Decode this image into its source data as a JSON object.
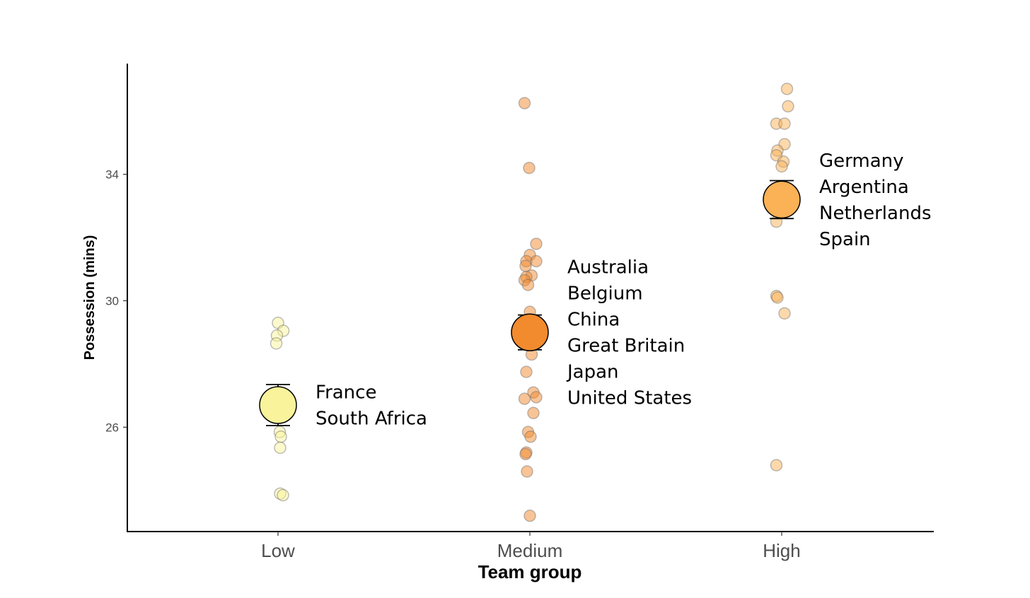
{
  "chart_data": {
    "type": "scatter",
    "xlabel": "Team group",
    "ylabel": "Possession (mins)",
    "categories": [
      "Low",
      "Medium",
      "High"
    ],
    "yticks": [
      26,
      30,
      34
    ],
    "ylim": [
      22.7,
      37.5
    ],
    "grid": false,
    "groups": [
      {
        "category": "Low",
        "color": "#f9f49b",
        "mean": 26.7,
        "error": [
          26.05,
          27.35
        ],
        "teams": [
          "France",
          "South Africa"
        ],
        "points": [
          {
            "j": 0.0,
            "y": 29.3
          },
          {
            "j": 0.15,
            "y": 29.05
          },
          {
            "j": -0.03,
            "y": 28.9
          },
          {
            "j": -0.05,
            "y": 28.65
          },
          {
            "j": 0.05,
            "y": 25.85
          },
          {
            "j": 0.08,
            "y": 25.7
          },
          {
            "j": 0.06,
            "y": 25.35
          },
          {
            "j": 0.06,
            "y": 23.9
          },
          {
            "j": 0.14,
            "y": 23.85
          }
        ]
      },
      {
        "category": "Medium",
        "color": "#f28a2e",
        "mean": 29.0,
        "error": [
          28.45,
          29.55
        ],
        "teams": [
          "Australia",
          "Belgium",
          "China",
          "Great Britain",
          "Japan",
          "United States"
        ],
        "points": [
          {
            "j": -0.15,
            "y": 36.25
          },
          {
            "j": -0.02,
            "y": 34.2
          },
          {
            "j": 0.18,
            "y": 31.8
          },
          {
            "j": 0.0,
            "y": 31.45
          },
          {
            "j": -0.1,
            "y": 31.25
          },
          {
            "j": 0.18,
            "y": 31.25
          },
          {
            "j": -0.12,
            "y": 31.1
          },
          {
            "j": 0.05,
            "y": 30.8
          },
          {
            "j": -0.1,
            "y": 30.75
          },
          {
            "j": -0.15,
            "y": 30.65
          },
          {
            "j": -0.05,
            "y": 30.5
          },
          {
            "j": 0.0,
            "y": 29.65
          },
          {
            "j": 0.05,
            "y": 28.3
          },
          {
            "j": -0.1,
            "y": 27.75
          },
          {
            "j": 0.1,
            "y": 27.1
          },
          {
            "j": 0.18,
            "y": 26.95
          },
          {
            "j": -0.15,
            "y": 26.9
          },
          {
            "j": 0.1,
            "y": 26.45
          },
          {
            "j": -0.05,
            "y": 25.85
          },
          {
            "j": 0.02,
            "y": 25.7
          },
          {
            "j": -0.1,
            "y": 25.2
          },
          {
            "j": -0.12,
            "y": 25.15
          },
          {
            "j": -0.08,
            "y": 24.6
          },
          {
            "j": 0.0,
            "y": 23.2
          }
        ]
      },
      {
        "category": "High",
        "color": "#fbb155",
        "mean": 33.2,
        "error": [
          32.6,
          33.8
        ],
        "teams": [
          "Germany",
          "Argentina",
          "Netherlands",
          "Spain"
        ],
        "points": [
          {
            "j": 0.15,
            "y": 36.7
          },
          {
            "j": 0.18,
            "y": 36.15
          },
          {
            "j": -0.15,
            "y": 35.6
          },
          {
            "j": 0.08,
            "y": 35.6
          },
          {
            "j": 0.08,
            "y": 34.95
          },
          {
            "j": -0.12,
            "y": 34.75
          },
          {
            "j": -0.15,
            "y": 34.6
          },
          {
            "j": 0.05,
            "y": 34.4
          },
          {
            "j": 0.0,
            "y": 34.25
          },
          {
            "j": -0.15,
            "y": 32.5
          },
          {
            "j": -0.15,
            "y": 30.15
          },
          {
            "j": -0.12,
            "y": 30.1
          },
          {
            "j": 0.08,
            "y": 29.6
          },
          {
            "j": -0.15,
            "y": 24.8
          }
        ]
      }
    ]
  }
}
